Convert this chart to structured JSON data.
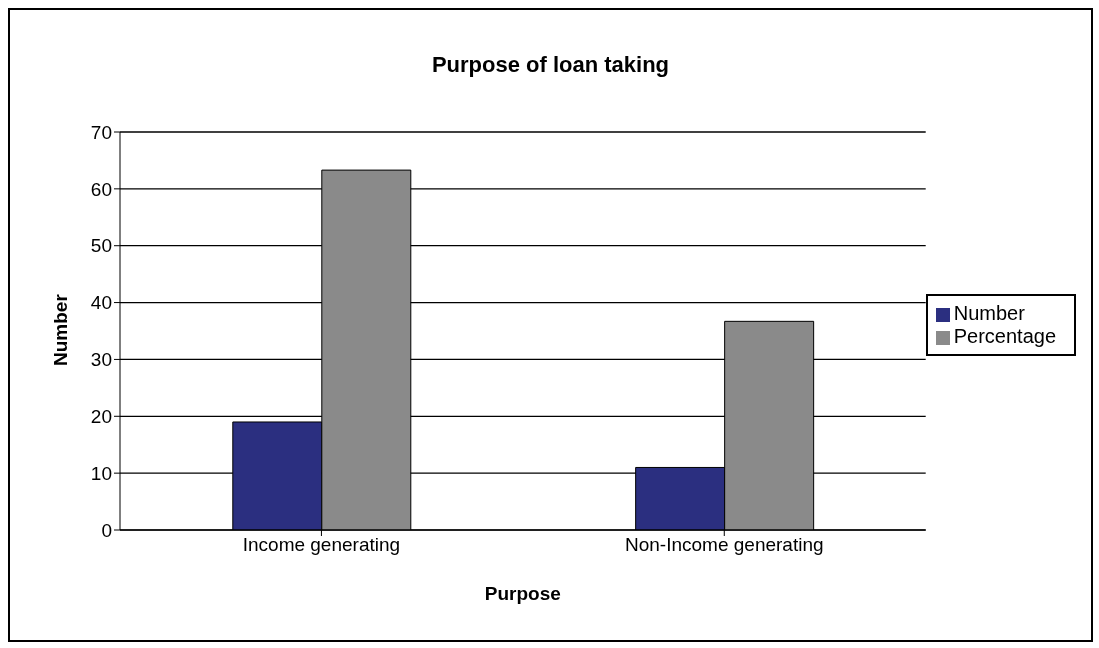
{
  "chart_data": {
    "type": "bar",
    "title": "Purpose of loan taking",
    "xlabel": "Purpose",
    "ylabel": "Number",
    "categories": [
      "Income generating",
      "Non-Income generating"
    ],
    "series": [
      {
        "name": "Number",
        "color": "#2b2f80",
        "values": [
          19,
          11
        ]
      },
      {
        "name": "Percentage",
        "color": "#8a8a8a",
        "values": [
          63.3,
          36.7
        ]
      }
    ],
    "ylim": [
      0,
      70
    ],
    "yticks": [
      0,
      10,
      20,
      30,
      40,
      50,
      60,
      70
    ],
    "grid": "y",
    "legend": "right"
  }
}
